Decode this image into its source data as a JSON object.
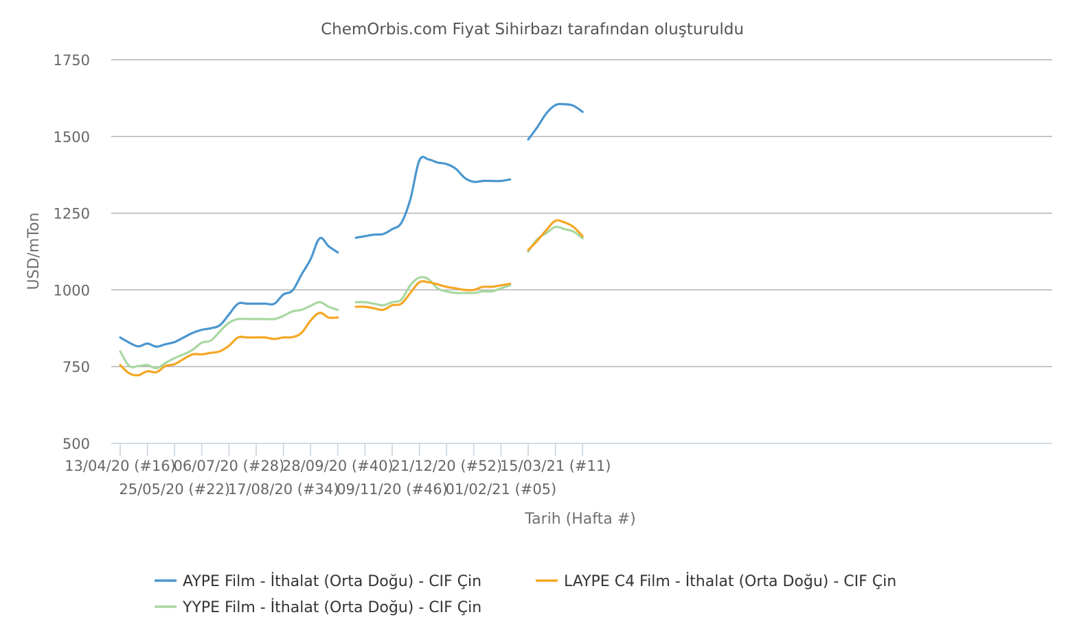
{
  "chart_data": {
    "type": "line",
    "title": "ChemOrbis.com Fiyat Sihirbazı tarafından oluşturuldu",
    "xlabel": "Tarih (Hafta #)",
    "ylabel": "USD/mTon",
    "ylim": [
      500,
      1750
    ],
    "yticks": [
      "500",
      "750",
      "1000",
      "1250",
      "1500",
      "1750"
    ],
    "grid": true,
    "legend_position": "bottom",
    "x_tick_labels": [
      {
        "week": 0,
        "label": "13/04/20 (#16)"
      },
      {
        "week": 6,
        "label": "25/05/20 (#22)"
      },
      {
        "week": 12,
        "label": "06/07/20 (#28)"
      },
      {
        "week": 18,
        "label": "17/08/20 (#34)"
      },
      {
        "week": 24,
        "label": "28/09/20 (#40)"
      },
      {
        "week": 30,
        "label": "09/11/20 (#46)"
      },
      {
        "week": 36,
        "label": "21/12/20 (#52)"
      },
      {
        "week": 42,
        "label": "01/02/21 (#05)"
      },
      {
        "week": 48,
        "label": "15/03/21 (#11)"
      }
    ],
    "series": [
      {
        "name": "AYPE Film - İthalat (Orta Doğu) - CIF Çin",
        "color": "#4a96cf",
        "segments": [
          [
            [
              0,
              845
            ],
            [
              1,
              828
            ],
            [
              2,
              816
            ],
            [
              3,
              825
            ],
            [
              4,
              815
            ],
            [
              5,
              823
            ],
            [
              6,
              830
            ],
            [
              7,
              845
            ],
            [
              8,
              860
            ],
            [
              9,
              870
            ],
            [
              10,
              875
            ],
            [
              11,
              885
            ],
            [
              12,
              920
            ],
            [
              13,
              955
            ],
            [
              14,
              955
            ],
            [
              15,
              955
            ],
            [
              16,
              955
            ],
            [
              17,
              955
            ],
            [
              18,
              985
            ],
            [
              19,
              998
            ],
            [
              20,
              1050
            ],
            [
              21,
              1100
            ],
            [
              22,
              1168
            ],
            [
              23,
              1142
            ],
            [
              24,
              1122
            ]
          ],
          [
            [
              26,
              1170
            ],
            [
              27,
              1175
            ],
            [
              28,
              1180
            ],
            [
              29,
              1182
            ],
            [
              30,
              1198
            ],
            [
              31,
              1218
            ],
            [
              32,
              1295
            ],
            [
              33,
              1422
            ],
            [
              34,
              1425
            ],
            [
              35,
              1415
            ],
            [
              36,
              1410
            ],
            [
              37,
              1395
            ],
            [
              38,
              1365
            ],
            [
              39,
              1352
            ],
            [
              40,
              1355
            ],
            [
              41,
              1355
            ],
            [
              42,
              1355
            ],
            [
              43,
              1360
            ]
          ],
          [
            [
              45,
              1490
            ],
            [
              46,
              1530
            ],
            [
              47,
              1575
            ],
            [
              48,
              1602
            ],
            [
              49,
              1605
            ],
            [
              50,
              1600
            ],
            [
              51,
              1580
            ]
          ]
        ]
      },
      {
        "name": "LAYPE C4 Film - İthalat (Orta Doğu) - CIF Çin",
        "color": "#f5a623",
        "segments": [
          [
            [
              0,
              755
            ],
            [
              1,
              728
            ],
            [
              2,
              722
            ],
            [
              3,
              735
            ],
            [
              4,
              732
            ],
            [
              5,
              752
            ],
            [
              6,
              758
            ],
            [
              7,
              775
            ],
            [
              8,
              790
            ],
            [
              9,
              790
            ],
            [
              10,
              795
            ],
            [
              11,
              800
            ],
            [
              12,
              818
            ],
            [
              13,
              845
            ],
            [
              14,
              845
            ],
            [
              15,
              845
            ],
            [
              16,
              845
            ],
            [
              17,
              840
            ],
            [
              18,
              845
            ],
            [
              19,
              846
            ],
            [
              20,
              860
            ],
            [
              21,
              900
            ],
            [
              22,
              925
            ],
            [
              23,
              910
            ],
            [
              24,
              910
            ]
          ],
          [
            [
              26,
              945
            ],
            [
              27,
              945
            ],
            [
              28,
              940
            ],
            [
              29,
              935
            ],
            [
              30,
              950
            ],
            [
              31,
              955
            ],
            [
              32,
              990
            ],
            [
              33,
              1025
            ],
            [
              34,
              1025
            ],
            [
              35,
              1018
            ],
            [
              36,
              1010
            ],
            [
              37,
              1005
            ],
            [
              38,
              1000
            ],
            [
              39,
              1000
            ],
            [
              40,
              1010
            ],
            [
              41,
              1010
            ],
            [
              42,
              1015
            ],
            [
              43,
              1020
            ]
          ],
          [
            [
              45,
              1130
            ],
            [
              46,
              1160
            ],
            [
              47,
              1195
            ],
            [
              48,
              1225
            ],
            [
              49,
              1220
            ],
            [
              50,
              1205
            ],
            [
              51,
              1175
            ]
          ]
        ]
      },
      {
        "name": "YYPE Film - İthalat (Orta Doğu) - CIF Çin",
        "color": "#a8d8a0",
        "segments": [
          [
            [
              0,
              800
            ],
            [
              1,
              752
            ],
            [
              2,
              752
            ],
            [
              3,
              755
            ],
            [
              4,
              745
            ],
            [
              5,
              762
            ],
            [
              6,
              778
            ],
            [
              7,
              790
            ],
            [
              8,
              805
            ],
            [
              9,
              828
            ],
            [
              10,
              835
            ],
            [
              11,
              865
            ],
            [
              12,
              893
            ],
            [
              13,
              905
            ],
            [
              14,
              905
            ],
            [
              15,
              905
            ],
            [
              16,
              905
            ],
            [
              17,
              905
            ],
            [
              18,
              915
            ],
            [
              19,
              930
            ],
            [
              20,
              935
            ],
            [
              21,
              948
            ],
            [
              22,
              960
            ],
            [
              23,
              945
            ],
            [
              24,
              935
            ]
          ],
          [
            [
              26,
              960
            ],
            [
              27,
              960
            ],
            [
              28,
              955
            ],
            [
              29,
              950
            ],
            [
              30,
              960
            ],
            [
              31,
              968
            ],
            [
              32,
              1015
            ],
            [
              33,
              1040
            ],
            [
              34,
              1035
            ],
            [
              35,
              1005
            ],
            [
              36,
              995
            ],
            [
              37,
              990
            ],
            [
              38,
              990
            ],
            [
              39,
              990
            ],
            [
              40,
              995
            ],
            [
              41,
              995
            ],
            [
              42,
              1005
            ],
            [
              43,
              1015
            ]
          ],
          [
            [
              45,
              1125
            ],
            [
              46,
              1165
            ],
            [
              47,
              1185
            ],
            [
              48,
              1205
            ],
            [
              49,
              1198
            ],
            [
              50,
              1190
            ],
            [
              51,
              1168
            ]
          ]
        ]
      }
    ]
  }
}
